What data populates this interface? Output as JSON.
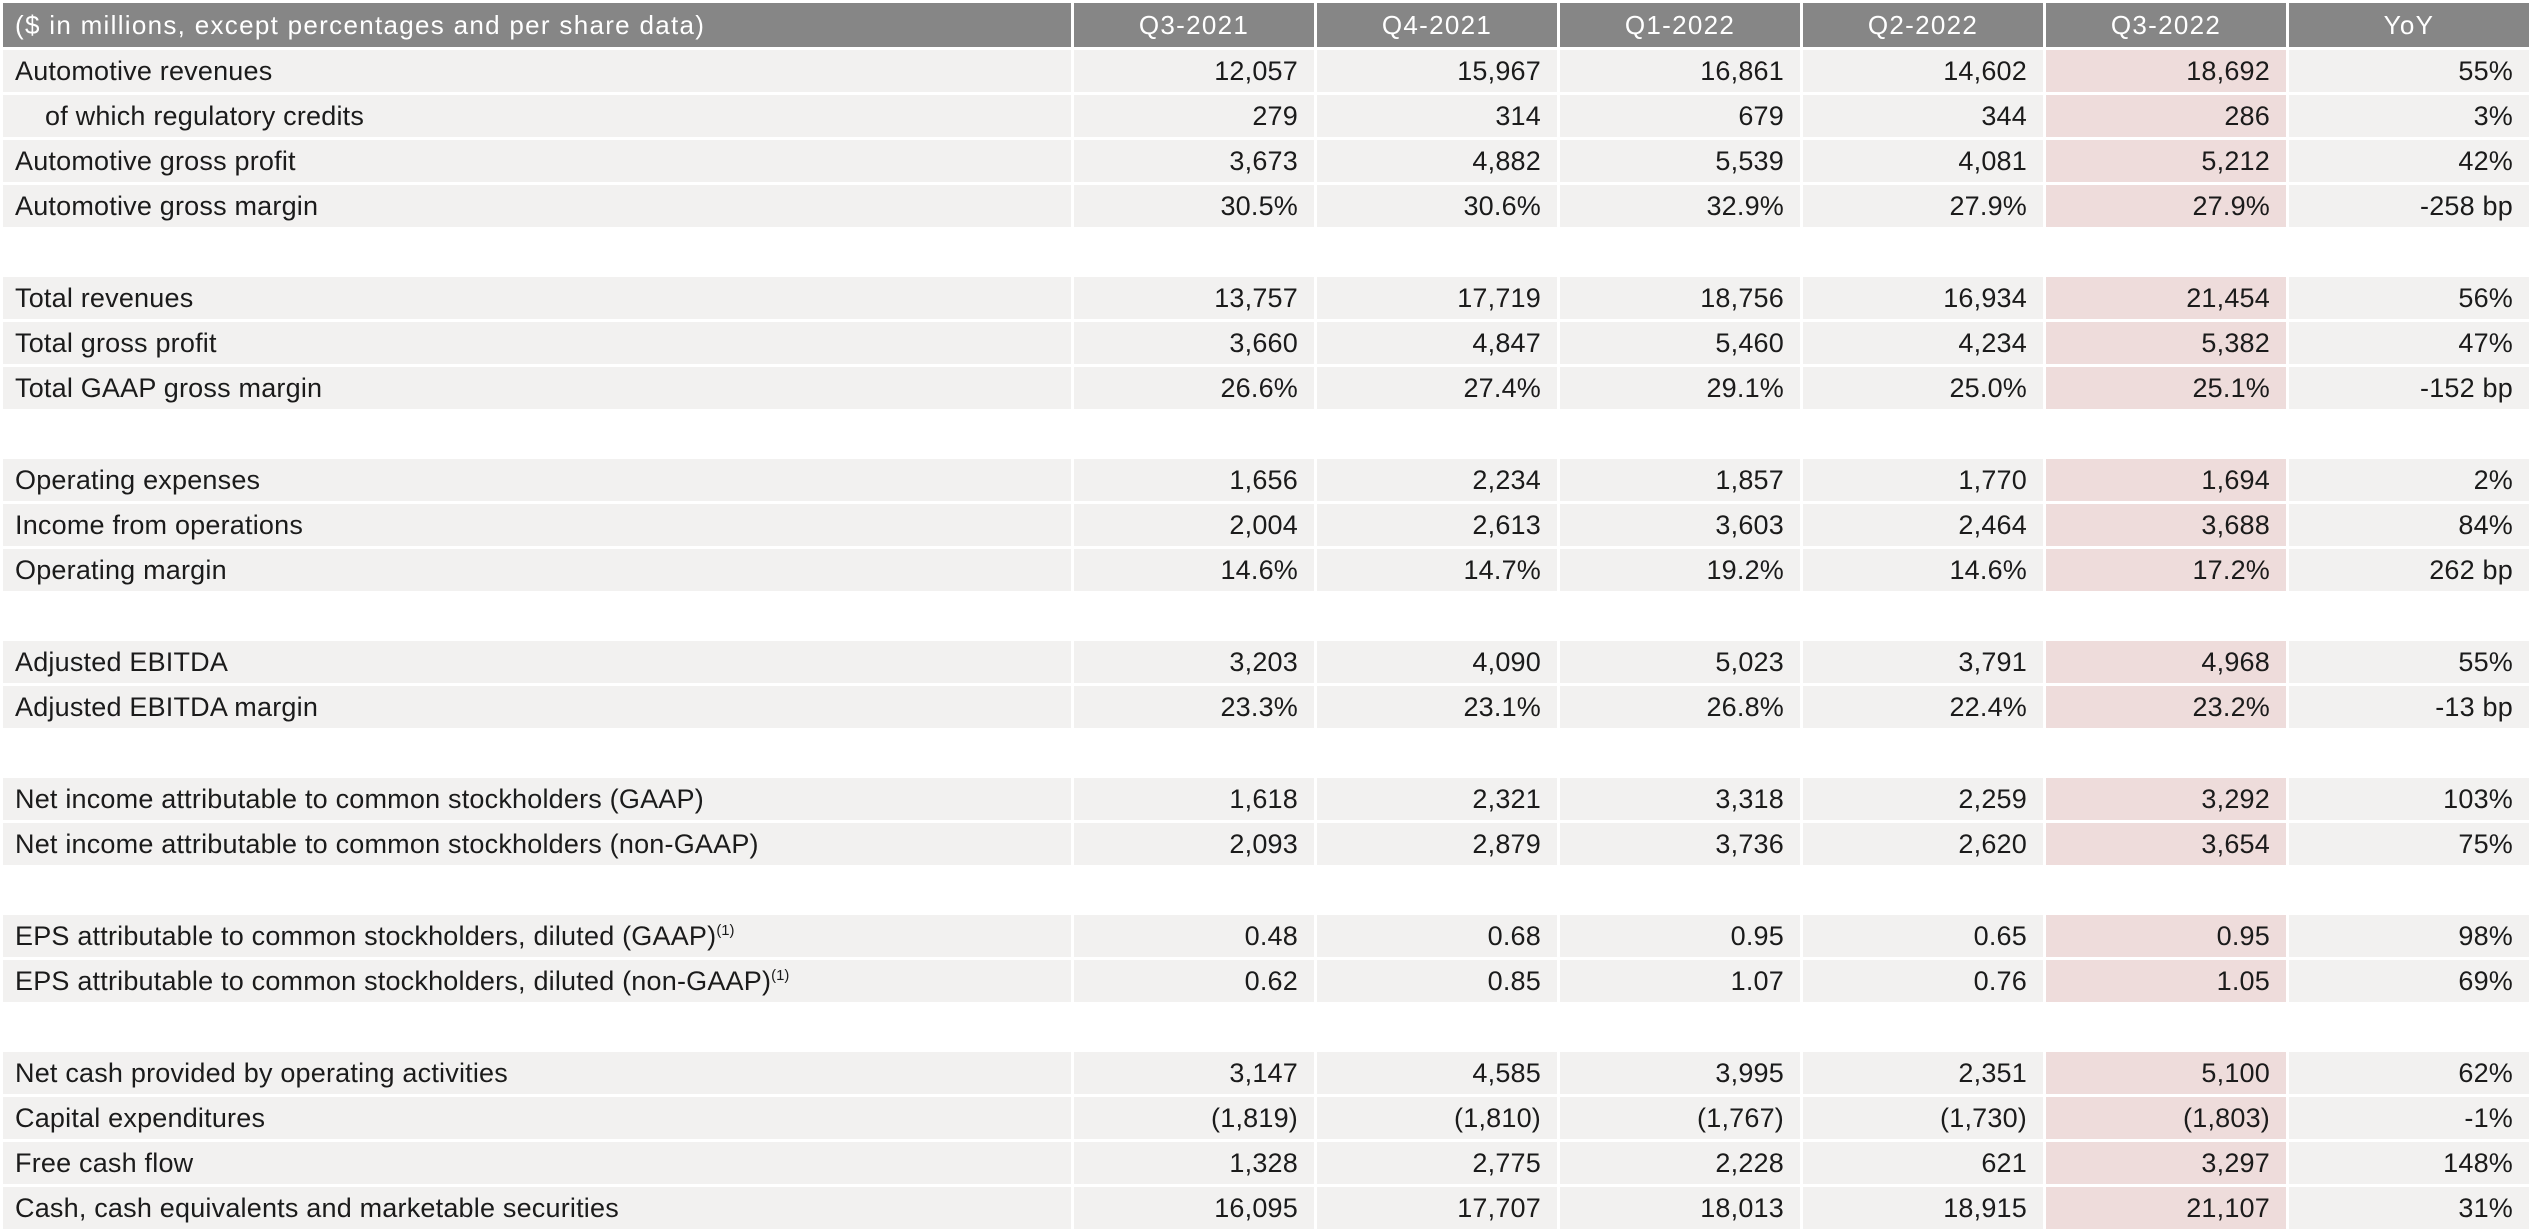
{
  "table": {
    "unit_note": "($ in millions, except percentages and per share data)",
    "columns": [
      "Q3-2021",
      "Q4-2021",
      "Q1-2022",
      "Q2-2022",
      "Q3-2022",
      "YoY"
    ],
    "highlight_column": "Q3-2022",
    "colors": {
      "header_bg": "#868686",
      "header_text": "#ffffff",
      "row_bg": "#f2f1f0",
      "highlight_bg": "#eedcdb",
      "text": "#1b1b1b"
    },
    "groups": [
      {
        "rows": [
          {
            "label": "Automotive revenues",
            "values": [
              "12,057",
              "15,967",
              "16,861",
              "14,602",
              "18,692",
              "55%"
            ]
          },
          {
            "label": "of which regulatory credits",
            "indent": true,
            "values": [
              "279",
              "314",
              "679",
              "344",
              "286",
              "3%"
            ]
          },
          {
            "label": "Automotive gross profit",
            "values": [
              "3,673",
              "4,882",
              "5,539",
              "4,081",
              "5,212",
              "42%"
            ]
          },
          {
            "label": "Automotive gross margin",
            "values": [
              "30.5%",
              "30.6%",
              "32.9%",
              "27.9%",
              "27.9%",
              "-258 bp"
            ]
          }
        ]
      },
      {
        "rows": [
          {
            "label": "Total revenues",
            "values": [
              "13,757",
              "17,719",
              "18,756",
              "16,934",
              "21,454",
              "56%"
            ]
          },
          {
            "label": "Total gross profit",
            "values": [
              "3,660",
              "4,847",
              "5,460",
              "4,234",
              "5,382",
              "47%"
            ]
          },
          {
            "label": "Total GAAP gross margin",
            "values": [
              "26.6%",
              "27.4%",
              "29.1%",
              "25.0%",
              "25.1%",
              "-152 bp"
            ]
          }
        ]
      },
      {
        "rows": [
          {
            "label": "Operating expenses",
            "values": [
              "1,656",
              "2,234",
              "1,857",
              "1,770",
              "1,694",
              "2%"
            ]
          },
          {
            "label": "Income from operations",
            "values": [
              "2,004",
              "2,613",
              "3,603",
              "2,464",
              "3,688",
              "84%"
            ]
          },
          {
            "label": "Operating margin",
            "values": [
              "14.6%",
              "14.7%",
              "19.2%",
              "14.6%",
              "17.2%",
              "262 bp"
            ]
          }
        ]
      },
      {
        "rows": [
          {
            "label": "Adjusted EBITDA",
            "values": [
              "3,203",
              "4,090",
              "5,023",
              "3,791",
              "4,968",
              "55%"
            ]
          },
          {
            "label": "Adjusted EBITDA margin",
            "values": [
              "23.3%",
              "23.1%",
              "26.8%",
              "22.4%",
              "23.2%",
              "-13 bp"
            ]
          }
        ]
      },
      {
        "rows": [
          {
            "label": "Net income attributable to common stockholders (GAAP)",
            "values": [
              "1,618",
              "2,321",
              "3,318",
              "2,259",
              "3,292",
              "103%"
            ]
          },
          {
            "label": "Net income attributable to common stockholders (non-GAAP)",
            "values": [
              "2,093",
              "2,879",
              "3,736",
              "2,620",
              "3,654",
              "75%"
            ]
          }
        ]
      },
      {
        "rows": [
          {
            "label": "EPS attributable to common stockholders, diluted (GAAP)",
            "sup": "(1)",
            "values": [
              "0.48",
              "0.68",
              "0.95",
              "0.65",
              "0.95",
              "98%"
            ]
          },
          {
            "label": "EPS attributable to common stockholders, diluted (non-GAAP)",
            "sup": "(1)",
            "values": [
              "0.62",
              "0.85",
              "1.07",
              "0.76",
              "1.05",
              "69%"
            ]
          }
        ]
      },
      {
        "rows": [
          {
            "label": "Net cash provided by operating activities",
            "values": [
              "3,147",
              "4,585",
              "3,995",
              "2,351",
              "5,100",
              "62%"
            ]
          },
          {
            "label": "Capital expenditures",
            "values": [
              "(1,819)",
              "(1,810)",
              "(1,767)",
              "(1,730)",
              "(1,803)",
              "-1%"
            ]
          },
          {
            "label": "Free cash flow",
            "values": [
              "1,328",
              "2,775",
              "2,228",
              "621",
              "3,297",
              "148%"
            ]
          },
          {
            "label": "Cash, cash equivalents and marketable securities",
            "values": [
              "16,095",
              "17,707",
              "18,013",
              "18,915",
              "21,107",
              "31%"
            ]
          }
        ]
      }
    ]
  }
}
